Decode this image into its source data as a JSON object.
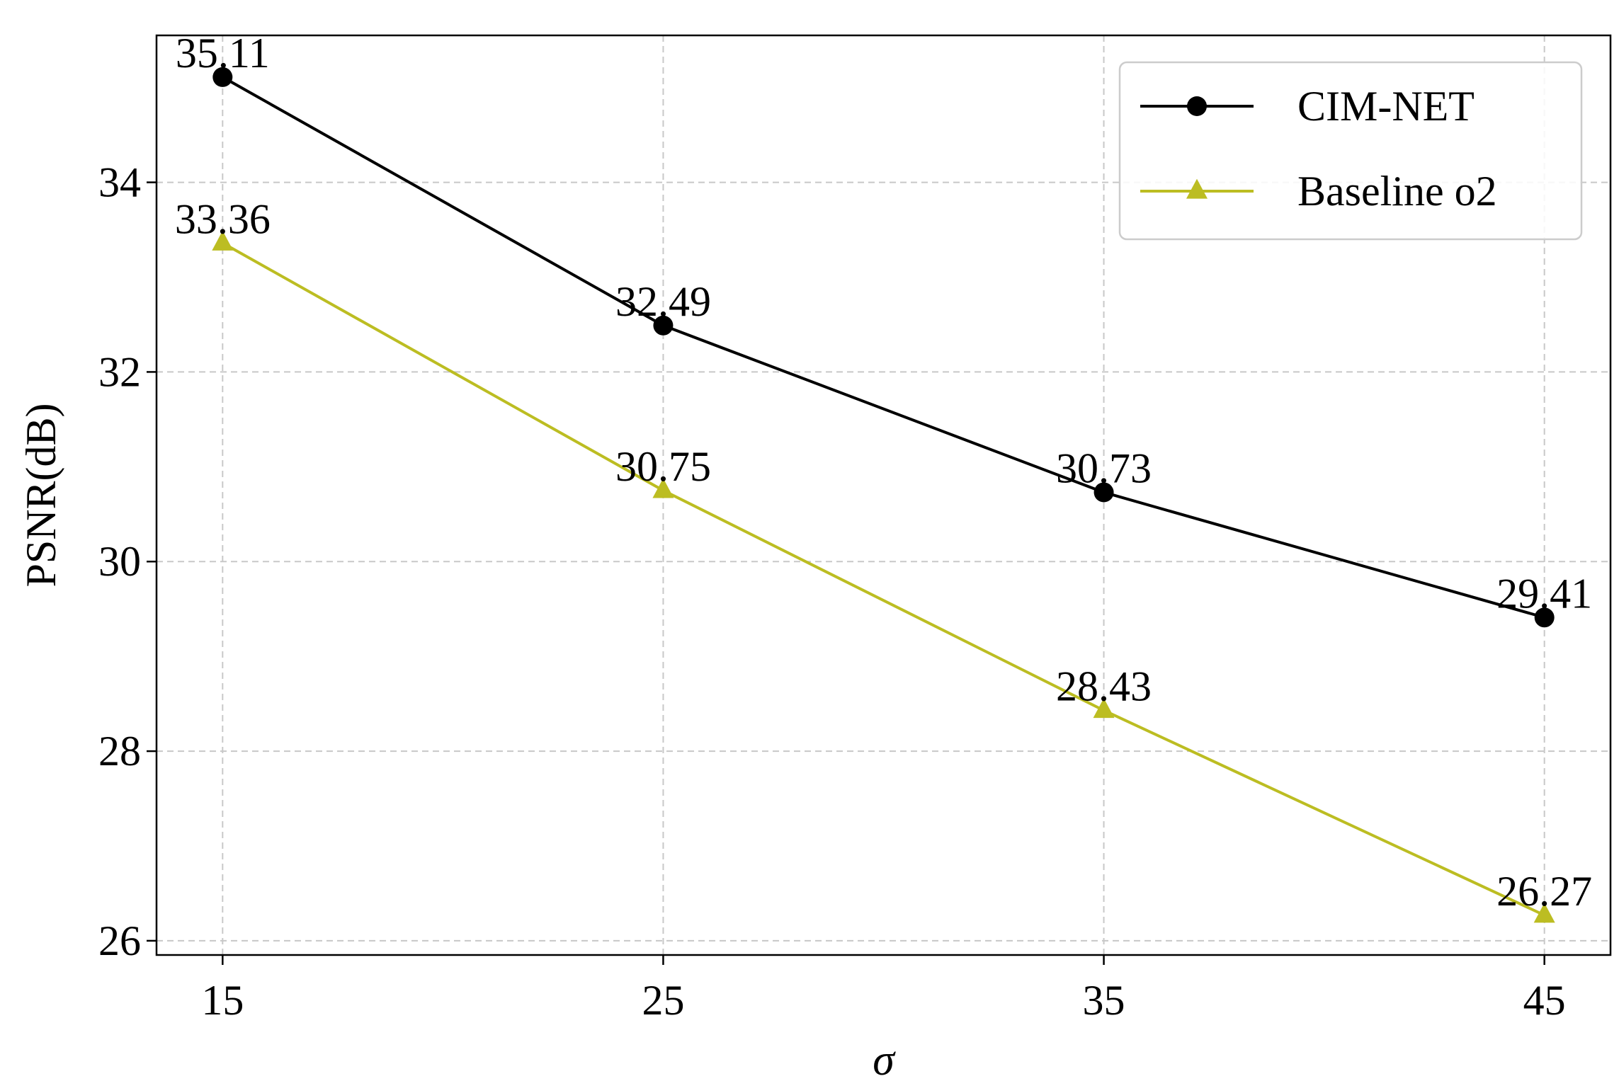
{
  "chart_data": {
    "type": "line",
    "title": "",
    "xlabel": "σ",
    "ylabel": "PSNR(dB)",
    "x": [
      15,
      25,
      35,
      45
    ],
    "xticks": [
      "15",
      "25",
      "35",
      "45"
    ],
    "yticks": [
      "26",
      "28",
      "30",
      "32",
      "34"
    ],
    "xlim": [
      13.5,
      46.5
    ],
    "ylim": [
      25.85,
      35.55
    ],
    "grid": true,
    "legend_position": "top-right",
    "series": [
      {
        "name": "CIM-NET",
        "values": [
          35.11,
          32.49,
          30.73,
          29.41
        ],
        "labels": [
          "35.11",
          "32.49",
          "30.73",
          "29.41"
        ],
        "color": "#000000",
        "marker": "circle"
      },
      {
        "name": "Baseline o2",
        "values": [
          33.36,
          30.75,
          28.43,
          26.27
        ],
        "labels": [
          "33.36",
          "30.75",
          "28.43",
          "26.27"
        ],
        "color": "#bcbd22",
        "marker": "triangle"
      }
    ]
  }
}
